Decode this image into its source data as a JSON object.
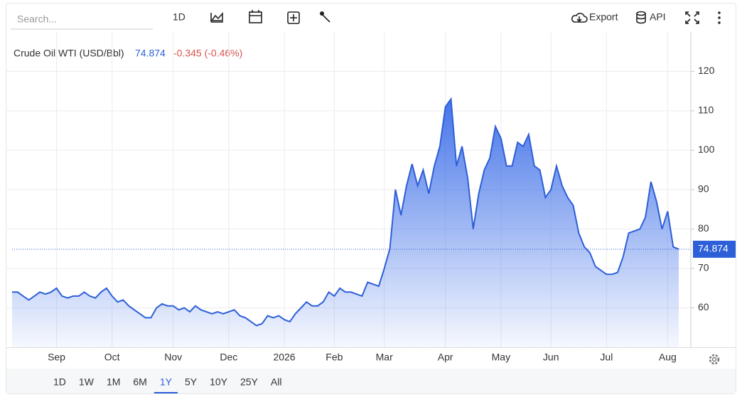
{
  "toolbar": {
    "search_placeholder": "Search...",
    "interval": "1D",
    "export": "Export",
    "api": "API"
  },
  "chart_data": {
    "type": "area",
    "title": "Crude Oil WTI (USD/Bbl)",
    "change": "-0.345 (-0.46%)",
    "color": "#2d5fd8",
    "categories": [
      null,
      null,
      null,
      null,
      null,
      null,
      null,
      null,
      "Sep",
      null,
      null,
      null,
      null,
      null,
      null,
      null,
      null,
      null,
      "Oct",
      null,
      null,
      null,
      null,
      null,
      null,
      null,
      null,
      null,
      null,
      "Nov",
      null,
      null,
      null,
      null,
      null,
      null,
      null,
      null,
      null,
      "Dec",
      null,
      null,
      null,
      null,
      null,
      null,
      null,
      null,
      null,
      "2026",
      null,
      null,
      null,
      null,
      null,
      null,
      null,
      null,
      "Feb",
      null,
      null,
      null,
      null,
      null,
      null,
      null,
      null,
      "Mar",
      null,
      null,
      null,
      null,
      null,
      null,
      null,
      null,
      null,
      null,
      "Apr",
      null,
      null,
      null,
      null,
      null,
      null,
      null,
      null,
      null,
      "May",
      null,
      null,
      null,
      null,
      null,
      null,
      null,
      null,
      "Jun",
      null,
      null,
      null,
      null,
      null,
      null,
      null,
      null,
      null,
      "Jul",
      null,
      null,
      null,
      null,
      null,
      null,
      null,
      null,
      null,
      null,
      "Aug",
      null,
      null
    ],
    "values": [
      64,
      64,
      63,
      62,
      63,
      64,
      63.5,
      64,
      65,
      63,
      62.5,
      63,
      63,
      64,
      63,
      62.5,
      64,
      65,
      63,
      61.5,
      62,
      60.5,
      59.5,
      58.5,
      57.5,
      57.5,
      60,
      61,
      60.5,
      60.5,
      59.5,
      60,
      59,
      60.5,
      59.5,
      59,
      58.5,
      59,
      58.5,
      59,
      59.5,
      58,
      57.5,
      56.5,
      55.5,
      56,
      58,
      57.5,
      58,
      57,
      56.5,
      58.5,
      60,
      61.5,
      60.5,
      60.5,
      61.5,
      64,
      63,
      65,
      64,
      64,
      63.5,
      63,
      66.5,
      66,
      65.5,
      70,
      75,
      90,
      83.5,
      91,
      96.5,
      91,
      95,
      89,
      96,
      101,
      111,
      113,
      96,
      101,
      93,
      80,
      89,
      95,
      98,
      106,
      103,
      96,
      96,
      102,
      101,
      104,
      96,
      95,
      88,
      90,
      96,
      91,
      88,
      86,
      79,
      75.5,
      74,
      70.5,
      69.5,
      68.5,
      68.5,
      69,
      73,
      79,
      79.5,
      80,
      83,
      92,
      87,
      80,
      84.5,
      75.5,
      74.874
    ],
    "ylim": [
      50,
      130
    ],
    "yticks": [
      60,
      70,
      80,
      90,
      100,
      110,
      120
    ],
    "grid": true
  },
  "range_buttons": [
    "1D",
    "1W",
    "1M",
    "6M",
    "1Y",
    "5Y",
    "10Y",
    "25Y",
    "All"
  ],
  "selected_range": "1Y"
}
